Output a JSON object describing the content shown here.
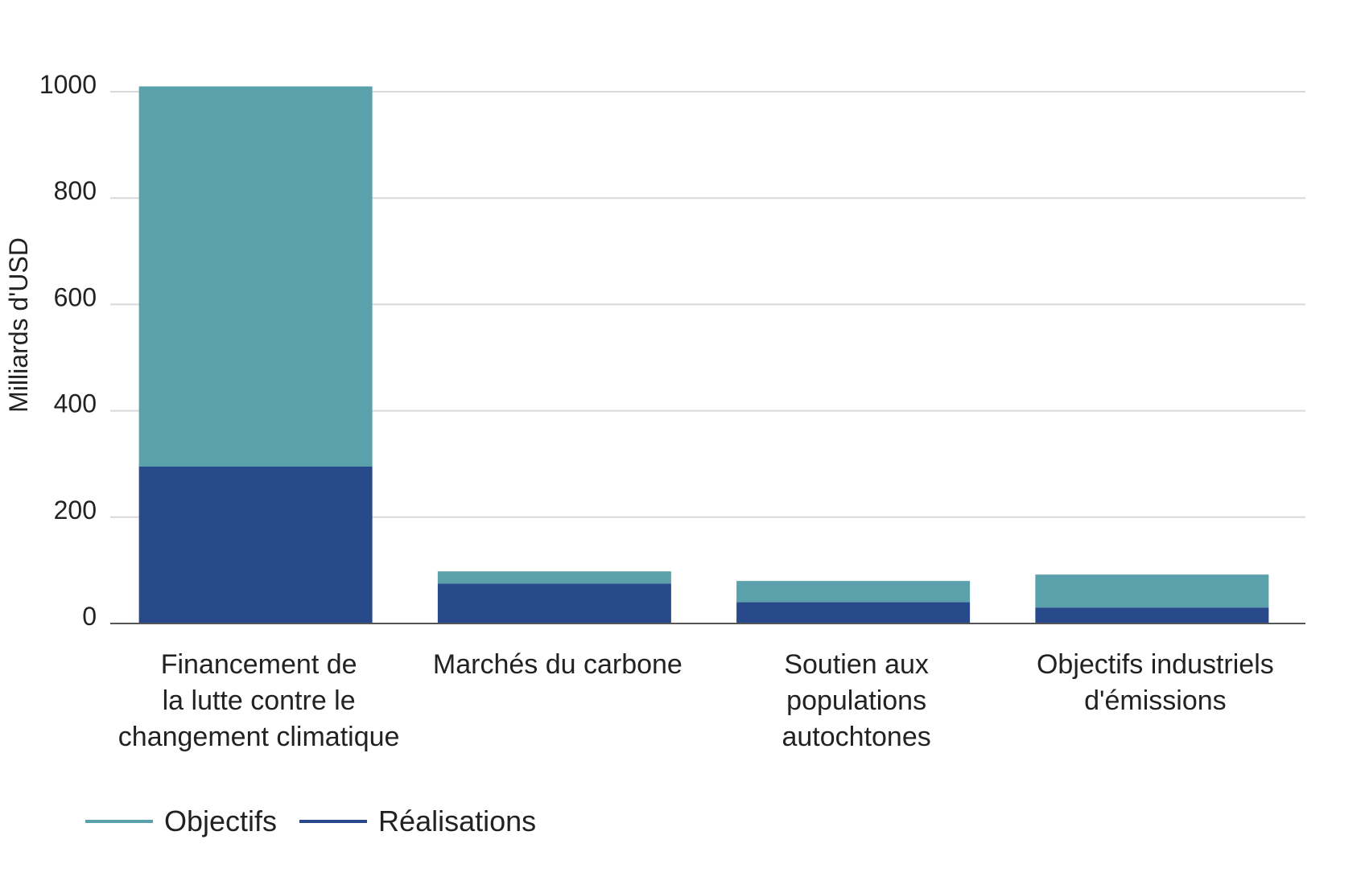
{
  "chart_data": {
    "type": "bar",
    "stacked": true,
    "categories": [
      [
        "Financement de",
        "la lutte contre le",
        "changement climatique"
      ],
      [
        "Marchés du carbone"
      ],
      [
        "Soutien aux",
        "populations",
        "autochtones"
      ],
      [
        "Objectifs industriels",
        "d'émissions"
      ]
    ],
    "series": [
      {
        "name": "Réalisations",
        "color": "#284a8a",
        "values": [
          295,
          75,
          40,
          30
        ]
      },
      {
        "name": "Objectifs",
        "color": "#5ba1ab",
        "values": [
          715,
          23,
          40,
          62
        ]
      }
    ],
    "ylabel": "Milliards d'USD",
    "ylim": [
      0,
      1000
    ],
    "yticks": [
      0,
      200,
      400,
      600,
      800,
      1000
    ],
    "grid": true,
    "legend_position": "bottom-left",
    "legend": [
      {
        "name": "Objectifs",
        "color": "#5ba1ab"
      },
      {
        "name": "Réalisations",
        "color": "#284a8a"
      }
    ]
  }
}
